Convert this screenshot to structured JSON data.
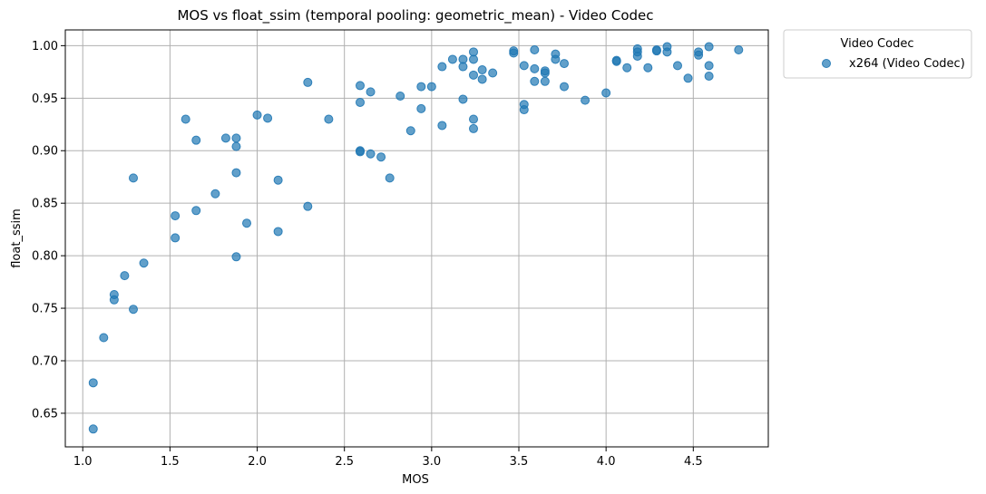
{
  "chart_data": {
    "type": "scatter",
    "title": "MOS vs float_ssim (temporal pooling: geometric_mean) - Video Codec",
    "xlabel": "MOS",
    "ylabel": "float_ssim",
    "xlim": [
      0.9,
      4.93
    ],
    "ylim": [
      0.618,
      1.015
    ],
    "xticks": [
      1.0,
      1.5,
      2.0,
      2.5,
      3.0,
      3.5,
      4.0,
      4.5
    ],
    "xtick_labels": [
      "1.0",
      "1.5",
      "2.0",
      "2.5",
      "3.0",
      "3.5",
      "4.0",
      "4.5"
    ],
    "yticks": [
      0.65,
      0.7,
      0.75,
      0.8,
      0.85,
      0.9,
      0.95,
      1.0
    ],
    "ytick_labels": [
      "0.65",
      "0.70",
      "0.75",
      "0.80",
      "0.85",
      "0.90",
      "0.95",
      "1.00"
    ],
    "grid": true,
    "legend": {
      "title": "Video Codec",
      "position": "outside-top-right"
    },
    "series": [
      {
        "name": "x264 (Video Codec)",
        "color": "#1f77b4",
        "points": [
          [
            1.06,
            0.679
          ],
          [
            1.06,
            0.635
          ],
          [
            1.12,
            0.722
          ],
          [
            1.18,
            0.763
          ],
          [
            1.18,
            0.758
          ],
          [
            1.24,
            0.781
          ],
          [
            1.29,
            0.874
          ],
          [
            1.29,
            0.749
          ],
          [
            1.35,
            0.793
          ],
          [
            1.53,
            0.838
          ],
          [
            1.53,
            0.817
          ],
          [
            1.59,
            0.93
          ],
          [
            1.65,
            0.91
          ],
          [
            1.65,
            0.843
          ],
          [
            1.76,
            0.859
          ],
          [
            1.82,
            0.912
          ],
          [
            1.88,
            0.912
          ],
          [
            1.88,
            0.904
          ],
          [
            1.88,
            0.879
          ],
          [
            1.88,
            0.799
          ],
          [
            1.94,
            0.831
          ],
          [
            2.0,
            0.934
          ],
          [
            2.06,
            0.931
          ],
          [
            2.12,
            0.872
          ],
          [
            2.12,
            0.823
          ],
          [
            2.29,
            0.965
          ],
          [
            2.29,
            0.847
          ],
          [
            2.41,
            0.93
          ],
          [
            2.59,
            0.962
          ],
          [
            2.59,
            0.946
          ],
          [
            2.59,
            0.9
          ],
          [
            2.59,
            0.899
          ],
          [
            2.65,
            0.956
          ],
          [
            2.65,
            0.897
          ],
          [
            2.71,
            0.894
          ],
          [
            2.76,
            0.874
          ],
          [
            2.82,
            0.952
          ],
          [
            2.88,
            0.919
          ],
          [
            2.94,
            0.961
          ],
          [
            2.94,
            0.94
          ],
          [
            3.0,
            0.961
          ],
          [
            3.06,
            0.98
          ],
          [
            3.06,
            0.924
          ],
          [
            3.12,
            0.987
          ],
          [
            3.18,
            0.987
          ],
          [
            3.18,
            0.98
          ],
          [
            3.18,
            0.949
          ],
          [
            3.24,
            0.994
          ],
          [
            3.24,
            0.987
          ],
          [
            3.24,
            0.972
          ],
          [
            3.24,
            0.93
          ],
          [
            3.24,
            0.921
          ],
          [
            3.29,
            0.977
          ],
          [
            3.29,
            0.968
          ],
          [
            3.35,
            0.974
          ],
          [
            3.47,
            0.995
          ],
          [
            3.47,
            0.993
          ],
          [
            3.53,
            0.981
          ],
          [
            3.53,
            0.944
          ],
          [
            3.53,
            0.939
          ],
          [
            3.59,
            0.996
          ],
          [
            3.59,
            0.978
          ],
          [
            3.59,
            0.966
          ],
          [
            3.65,
            0.976
          ],
          [
            3.65,
            0.974
          ],
          [
            3.65,
            0.966
          ],
          [
            3.71,
            0.992
          ],
          [
            3.71,
            0.987
          ],
          [
            3.76,
            0.983
          ],
          [
            3.76,
            0.961
          ],
          [
            3.88,
            0.948
          ],
          [
            4.0,
            0.955
          ],
          [
            4.06,
            0.986
          ],
          [
            4.06,
            0.985
          ],
          [
            4.12,
            0.979
          ],
          [
            4.18,
            0.997
          ],
          [
            4.18,
            0.994
          ],
          [
            4.18,
            0.99
          ],
          [
            4.24,
            0.979
          ],
          [
            4.29,
            0.996
          ],
          [
            4.29,
            0.995
          ],
          [
            4.35,
            0.999
          ],
          [
            4.35,
            0.994
          ],
          [
            4.41,
            0.981
          ],
          [
            4.47,
            0.969
          ],
          [
            4.53,
            0.994
          ],
          [
            4.53,
            0.991
          ],
          [
            4.59,
            0.999
          ],
          [
            4.59,
            0.981
          ],
          [
            4.59,
            0.971
          ],
          [
            4.76,
            0.996
          ]
        ]
      }
    ]
  }
}
